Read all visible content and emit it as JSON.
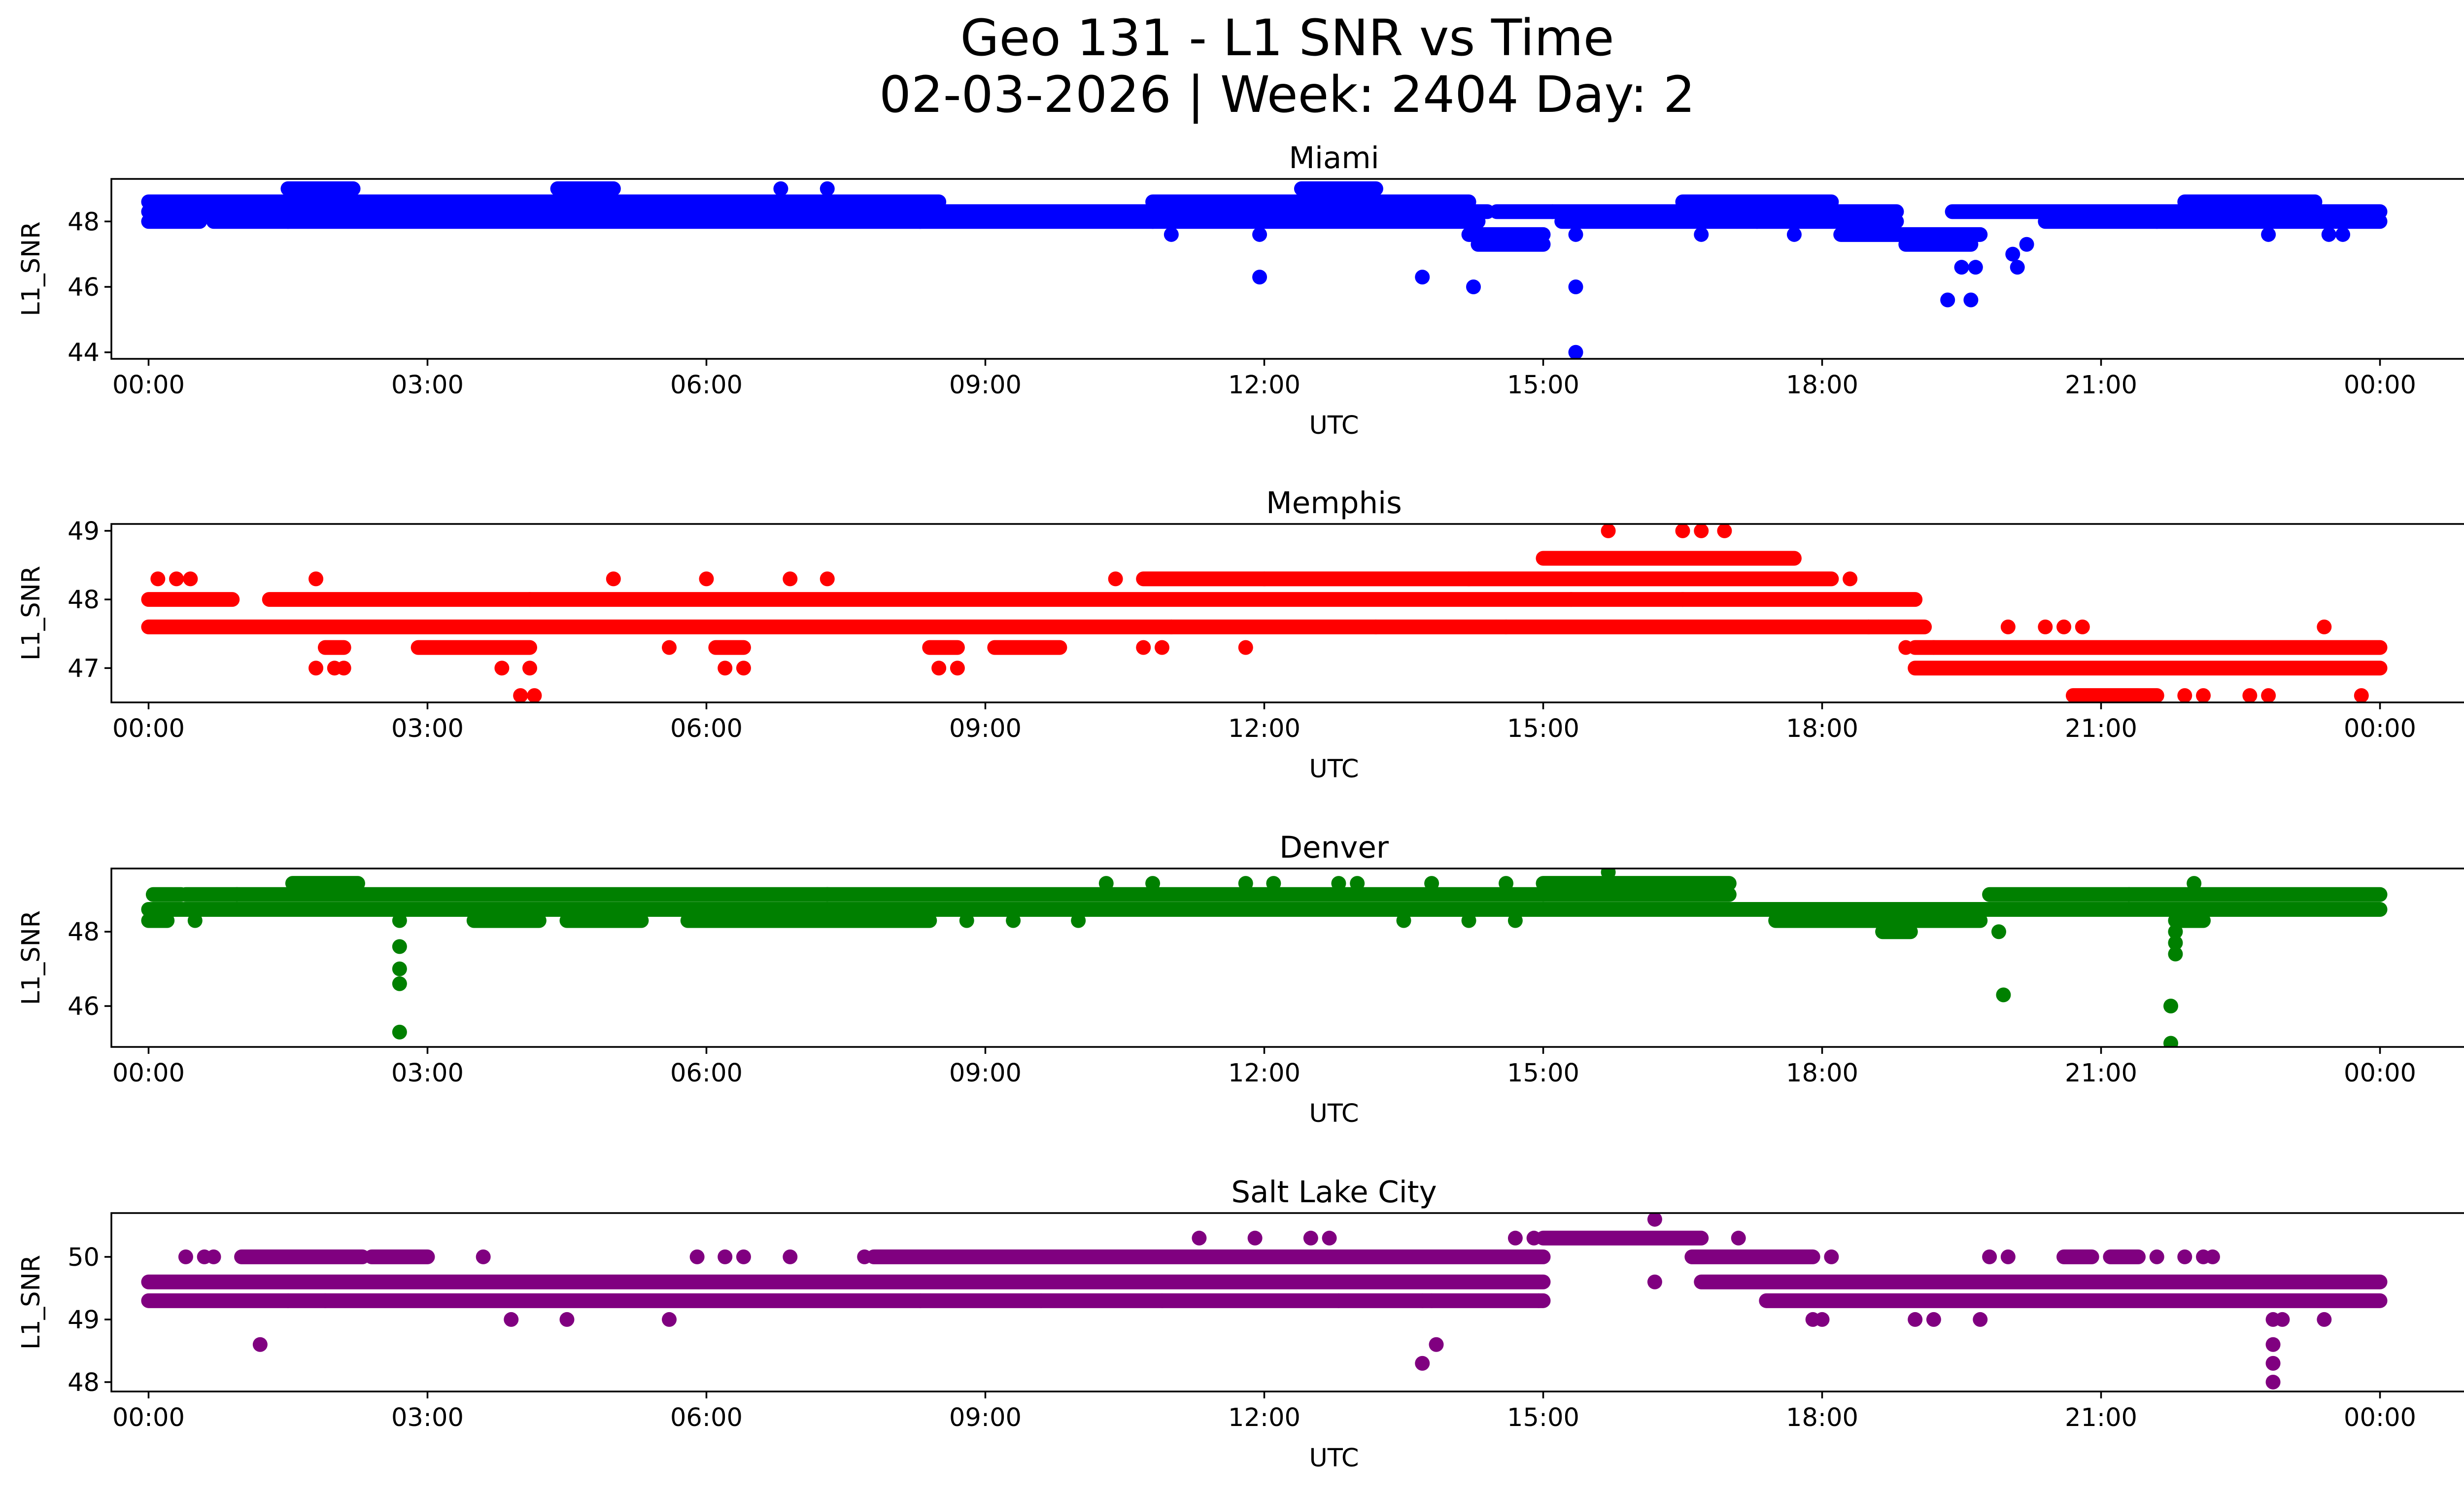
{
  "figure": {
    "title_line1": "Geo 131 - L1 SNR vs Time",
    "title_line2": "02-03-2026 | Week: 2404 Day: 2"
  },
  "chart_data": [
    {
      "type": "scatter",
      "title": "Miami",
      "xlabel": "UTC",
      "ylabel": "L1_SNR",
      "color": "#0000ff",
      "x_unit": "hours UTC",
      "xlim": [
        -0.4,
        25.9
      ],
      "xticks": [
        0,
        3,
        6,
        9,
        12,
        15,
        18,
        21,
        24
      ],
      "xtick_labels": [
        "00:00",
        "03:00",
        "06:00",
        "09:00",
        "12:00",
        "15:00",
        "18:00",
        "21:00",
        "00:00"
      ],
      "ylim": [
        43.8,
        49.3
      ],
      "yticks": [
        44,
        46,
        48
      ],
      "ytick_labels": [
        "44",
        "46",
        "48"
      ],
      "levels": [
        {
          "y": 48.0,
          "segments": [
            [
              0,
              0.55
            ],
            [
              0.7,
              8.3
            ],
            [
              8.3,
              10.8
            ],
            [
              10.8,
              14.3
            ],
            [
              15.2,
              17.3
            ],
            [
              17.3,
              18.8
            ],
            [
              20.4,
              21.6
            ],
            [
              21.6,
              24.0
            ]
          ]
        },
        {
          "y": 48.3,
          "segments": [
            [
              0,
              14.4
            ],
            [
              14.5,
              15.1
            ],
            [
              15.1,
              18.8
            ],
            [
              19.4,
              24.0
            ]
          ]
        },
        {
          "y": 48.6,
          "segments": [
            [
              0,
              8.5
            ],
            [
              10.8,
              14.2
            ],
            [
              16.5,
              18.1
            ],
            [
              21.9,
              23.3
            ]
          ]
        },
        {
          "y": 47.6,
          "segments": [
            [
              14.2,
              15.0
            ],
            [
              18.2,
              19.7
            ]
          ]
        },
        {
          "y": 47.3,
          "segments": [
            [
              14.3,
              15.0
            ],
            [
              18.9,
              19.6
            ]
          ]
        },
        {
          "y": 49.0,
          "segments": [
            [
              1.5,
              2.2
            ],
            [
              4.4,
              5.0
            ],
            [
              12.4,
              13.2
            ]
          ]
        }
      ],
      "points": [
        {
          "x": 1.5,
          "y": 48.0
        },
        {
          "x": 6.8,
          "y": 49.0
        },
        {
          "x": 7.3,
          "y": 49.0
        },
        {
          "x": 11.0,
          "y": 47.6
        },
        {
          "x": 11.95,
          "y": 47.6
        },
        {
          "x": 11.95,
          "y": 46.3
        },
        {
          "x": 13.7,
          "y": 46.3
        },
        {
          "x": 14.25,
          "y": 46.0
        },
        {
          "x": 15.35,
          "y": 46.0
        },
        {
          "x": 15.35,
          "y": 44.0
        },
        {
          "x": 15.35,
          "y": 47.6
        },
        {
          "x": 16.7,
          "y": 47.6
        },
        {
          "x": 17.7,
          "y": 47.6
        },
        {
          "x": 19.35,
          "y": 45.6
        },
        {
          "x": 19.6,
          "y": 45.6
        },
        {
          "x": 19.5,
          "y": 46.6
        },
        {
          "x": 19.65,
          "y": 46.6
        },
        {
          "x": 20.1,
          "y": 46.6
        },
        {
          "x": 20.05,
          "y": 47.0
        },
        {
          "x": 20.2,
          "y": 47.3
        },
        {
          "x": 22.8,
          "y": 47.6
        },
        {
          "x": 23.6,
          "y": 47.6
        },
        {
          "x": 23.45,
          "y": 47.6
        }
      ]
    },
    {
      "type": "scatter",
      "title": "Memphis",
      "xlabel": "UTC",
      "ylabel": "L1_SNR",
      "color": "#ff0000",
      "x_unit": "hours UTC",
      "xlim": [
        -0.4,
        25.9
      ],
      "xticks": [
        0,
        3,
        6,
        9,
        12,
        15,
        18,
        21,
        24
      ],
      "xtick_labels": [
        "00:00",
        "03:00",
        "06:00",
        "09:00",
        "12:00",
        "15:00",
        "18:00",
        "21:00",
        "00:00"
      ],
      "ylim": [
        46.5,
        49.1
      ],
      "yticks": [
        47,
        48,
        49
      ],
      "ytick_labels": [
        "47",
        "48",
        "49"
      ],
      "levels": [
        {
          "y": 47.6,
          "segments": [
            [
              0,
              19.1
            ]
          ]
        },
        {
          "y": 48.0,
          "segments": [
            [
              0,
              0.9
            ],
            [
              1.3,
              4.1
            ],
            [
              4.1,
              19.0
            ]
          ]
        },
        {
          "y": 48.3,
          "segments": [
            [
              10.7,
              12.0
            ],
            [
              12.0,
              18.1
            ]
          ]
        },
        {
          "y": 48.6,
          "segments": [
            [
              15.0,
              17.7
            ]
          ]
        },
        {
          "y": 47.3,
          "segments": [
            [
              1.9,
              2.1
            ],
            [
              2.9,
              4.1
            ],
            [
              6.1,
              6.4
            ],
            [
              8.4,
              8.7
            ],
            [
              9.1,
              9.8
            ],
            [
              19.0,
              24.0
            ]
          ]
        },
        {
          "y": 47.0,
          "segments": [
            [
              19.0,
              24.0
            ]
          ]
        },
        {
          "y": 46.6,
          "segments": [
            [
              20.7,
              21.6
            ]
          ]
        }
      ],
      "points": [
        {
          "x": 0.1,
          "y": 48.3
        },
        {
          "x": 0.3,
          "y": 48.3
        },
        {
          "x": 0.45,
          "y": 48.3
        },
        {
          "x": 1.8,
          "y": 48.3
        },
        {
          "x": 1.8,
          "y": 47.0
        },
        {
          "x": 2.0,
          "y": 47.0
        },
        {
          "x": 2.1,
          "y": 47.0
        },
        {
          "x": 3.8,
          "y": 47.0
        },
        {
          "x": 4.1,
          "y": 47.0
        },
        {
          "x": 4.0,
          "y": 46.6
        },
        {
          "x": 4.15,
          "y": 46.6
        },
        {
          "x": 5.0,
          "y": 48.3
        },
        {
          "x": 5.6,
          "y": 47.3
        },
        {
          "x": 6.0,
          "y": 48.3
        },
        {
          "x": 6.2,
          "y": 47.0
        },
        {
          "x": 6.4,
          "y": 47.0
        },
        {
          "x": 6.9,
          "y": 48.3
        },
        {
          "x": 7.3,
          "y": 48.3
        },
        {
          "x": 8.5,
          "y": 47.0
        },
        {
          "x": 8.7,
          "y": 47.0
        },
        {
          "x": 10.4,
          "y": 48.3
        },
        {
          "x": 10.7,
          "y": 47.3
        },
        {
          "x": 10.9,
          "y": 47.3
        },
        {
          "x": 11.0,
          "y": 47.6
        },
        {
          "x": 11.8,
          "y": 47.3
        },
        {
          "x": 13.2,
          "y": 47.6
        },
        {
          "x": 14.2,
          "y": 48.3
        },
        {
          "x": 14.6,
          "y": 47.6
        },
        {
          "x": 15.3,
          "y": 48.0
        },
        {
          "x": 15.7,
          "y": 49.0
        },
        {
          "x": 16.5,
          "y": 49.0
        },
        {
          "x": 16.7,
          "y": 49.0
        },
        {
          "x": 16.95,
          "y": 49.0
        },
        {
          "x": 16.5,
          "y": 48.0
        },
        {
          "x": 18.3,
          "y": 48.3
        },
        {
          "x": 18.5,
          "y": 47.6
        },
        {
          "x": 18.9,
          "y": 47.3
        },
        {
          "x": 19.2,
          "y": 47.3
        },
        {
          "x": 20.0,
          "y": 47.6
        },
        {
          "x": 20.4,
          "y": 47.6
        },
        {
          "x": 20.6,
          "y": 47.6
        },
        {
          "x": 20.8,
          "y": 47.6
        },
        {
          "x": 21.9,
          "y": 46.6
        },
        {
          "x": 22.1,
          "y": 46.6
        },
        {
          "x": 22.6,
          "y": 46.6
        },
        {
          "x": 22.8,
          "y": 46.6
        },
        {
          "x": 23.4,
          "y": 47.6
        },
        {
          "x": 23.8,
          "y": 46.6
        }
      ]
    },
    {
      "type": "scatter",
      "title": "Denver",
      "xlabel": "UTC",
      "ylabel": "L1_SNR",
      "color": "#008000",
      "x_unit": "hours UTC",
      "xlim": [
        -0.4,
        25.9
      ],
      "xticks": [
        0,
        3,
        6,
        9,
        12,
        15,
        18,
        21,
        24
      ],
      "xtick_labels": [
        "00:00",
        "03:00",
        "06:00",
        "09:00",
        "12:00",
        "15:00",
        "18:00",
        "21:00",
        "00:00"
      ],
      "ylim": [
        44.9,
        49.7
      ],
      "yticks": [
        46,
        48
      ],
      "ytick_labels": [
        "46",
        "48"
      ],
      "levels": [
        {
          "y": 48.6,
          "segments": [
            [
              0,
              24.0
            ]
          ]
        },
        {
          "y": 49.0,
          "segments": [
            [
              0.05,
              0.35
            ],
            [
              0.4,
              0.95
            ],
            [
              0.95,
              15.0
            ],
            [
              15.0,
              17.0
            ],
            [
              19.8,
              21.3
            ],
            [
              21.3,
              24.0
            ]
          ]
        },
        {
          "y": 48.3,
          "segments": [
            [
              0,
              0.2
            ],
            [
              3.5,
              4.2
            ],
            [
              4.5,
              5.3
            ],
            [
              5.8,
              8.4
            ],
            [
              17.5,
              19.7
            ],
            [
              21.8,
              22.1
            ]
          ]
        },
        {
          "y": 49.3,
          "segments": [
            [
              1.55,
              2.25
            ],
            [
              15.0,
              17.0
            ]
          ]
        },
        {
          "y": 48.0,
          "segments": [
            [
              18.65,
              18.95
            ]
          ]
        }
      ],
      "points": [
        {
          "x": 0.5,
          "y": 48.3
        },
        {
          "x": 2.7,
          "y": 48.3
        },
        {
          "x": 2.7,
          "y": 47.6
        },
        {
          "x": 2.7,
          "y": 47.0
        },
        {
          "x": 2.7,
          "y": 46.6
        },
        {
          "x": 2.7,
          "y": 45.3
        },
        {
          "x": 7.3,
          "y": 49.0
        },
        {
          "x": 8.8,
          "y": 48.3
        },
        {
          "x": 9.3,
          "y": 48.3
        },
        {
          "x": 10.0,
          "y": 48.3
        },
        {
          "x": 10.3,
          "y": 49.3
        },
        {
          "x": 10.8,
          "y": 49.3
        },
        {
          "x": 11.8,
          "y": 49.3
        },
        {
          "x": 12.1,
          "y": 49.3
        },
        {
          "x": 12.8,
          "y": 49.3
        },
        {
          "x": 13.0,
          "y": 49.3
        },
        {
          "x": 13.8,
          "y": 49.3
        },
        {
          "x": 13.5,
          "y": 48.3
        },
        {
          "x": 14.2,
          "y": 48.3
        },
        {
          "x": 14.7,
          "y": 48.3
        },
        {
          "x": 14.6,
          "y": 49.3
        },
        {
          "x": 15.7,
          "y": 49.6
        },
        {
          "x": 19.9,
          "y": 48.0
        },
        {
          "x": 19.95,
          "y": 46.3
        },
        {
          "x": 21.8,
          "y": 48.0
        },
        {
          "x": 21.8,
          "y": 47.7
        },
        {
          "x": 21.8,
          "y": 47.4
        },
        {
          "x": 21.75,
          "y": 46.0
        },
        {
          "x": 21.75,
          "y": 45.0
        },
        {
          "x": 22.0,
          "y": 49.3
        }
      ]
    },
    {
      "type": "scatter",
      "title": "Salt Lake City",
      "xlabel": "UTC",
      "ylabel": "L1_SNR",
      "color": "#800080",
      "x_unit": "hours UTC",
      "xlim": [
        -0.4,
        25.9
      ],
      "xticks": [
        0,
        3,
        6,
        9,
        12,
        15,
        18,
        21,
        24
      ],
      "xtick_labels": [
        "00:00",
        "03:00",
        "06:00",
        "09:00",
        "12:00",
        "15:00",
        "18:00",
        "21:00",
        "00:00"
      ],
      "ylim": [
        47.85,
        50.7
      ],
      "yticks": [
        48,
        49,
        50
      ],
      "ytick_labels": [
        "48",
        "49",
        "50"
      ],
      "levels": [
        {
          "y": 49.6,
          "segments": [
            [
              0,
              15.0
            ],
            [
              16.7,
              24.0
            ]
          ]
        },
        {
          "y": 49.3,
          "segments": [
            [
              0,
              8.3
            ],
            [
              8.3,
              15.0
            ],
            [
              17.4,
              24.0
            ]
          ]
        },
        {
          "y": 50.0,
          "segments": [
            [
              1.0,
              2.3
            ],
            [
              7.8,
              15.0
            ],
            [
              16.6,
              17.9
            ],
            [
              20.6,
              20.9
            ],
            [
              21.1,
              21.4
            ]
          ]
        },
        {
          "y": 50.3,
          "segments": [
            [
              15.0,
              16.7
            ]
          ]
        },
        {
          "y": 50.0,
          "segments": [
            [
              2.4,
              3.0
            ]
          ]
        }
      ],
      "points": [
        {
          "x": 0.4,
          "y": 50.0
        },
        {
          "x": 0.6,
          "y": 50.0
        },
        {
          "x": 0.7,
          "y": 50.0
        },
        {
          "x": 1.2,
          "y": 48.6
        },
        {
          "x": 1.5,
          "y": 49.3
        },
        {
          "x": 1.9,
          "y": 49.3
        },
        {
          "x": 3.6,
          "y": 50.0
        },
        {
          "x": 3.9,
          "y": 49.0
        },
        {
          "x": 4.5,
          "y": 49.0
        },
        {
          "x": 5.6,
          "y": 49.0
        },
        {
          "x": 5.9,
          "y": 50.0
        },
        {
          "x": 6.2,
          "y": 50.0
        },
        {
          "x": 6.4,
          "y": 50.0
        },
        {
          "x": 6.9,
          "y": 50.0
        },
        {
          "x": 7.7,
          "y": 50.0
        },
        {
          "x": 9.6,
          "y": 49.3
        },
        {
          "x": 10.9,
          "y": 49.3
        },
        {
          "x": 11.3,
          "y": 50.3
        },
        {
          "x": 11.9,
          "y": 50.3
        },
        {
          "x": 12.5,
          "y": 50.3
        },
        {
          "x": 12.7,
          "y": 50.3
        },
        {
          "x": 12.8,
          "y": 49.3
        },
        {
          "x": 13.7,
          "y": 49.3
        },
        {
          "x": 13.7,
          "y": 48.3
        },
        {
          "x": 13.85,
          "y": 48.6
        },
        {
          "x": 13.8,
          "y": 49.3
        },
        {
          "x": 14.7,
          "y": 50.3
        },
        {
          "x": 14.9,
          "y": 50.3
        },
        {
          "x": 14.95,
          "y": 49.3
        },
        {
          "x": 16.2,
          "y": 50.6
        },
        {
          "x": 16.2,
          "y": 49.6
        },
        {
          "x": 17.1,
          "y": 50.3
        },
        {
          "x": 17.9,
          "y": 49.0
        },
        {
          "x": 18.0,
          "y": 49.0
        },
        {
          "x": 18.1,
          "y": 50.0
        },
        {
          "x": 19.0,
          "y": 49.0
        },
        {
          "x": 19.2,
          "y": 49.0
        },
        {
          "x": 19.7,
          "y": 49.0
        },
        {
          "x": 19.8,
          "y": 50.0
        },
        {
          "x": 20.0,
          "y": 50.0
        },
        {
          "x": 21.6,
          "y": 50.0
        },
        {
          "x": 21.9,
          "y": 50.0
        },
        {
          "x": 22.1,
          "y": 50.0
        },
        {
          "x": 22.2,
          "y": 50.0
        },
        {
          "x": 22.85,
          "y": 49.0
        },
        {
          "x": 22.95,
          "y": 49.0
        },
        {
          "x": 22.85,
          "y": 48.6
        },
        {
          "x": 22.85,
          "y": 48.3
        },
        {
          "x": 22.85,
          "y": 48.0
        },
        {
          "x": 23.4,
          "y": 49.0
        }
      ]
    }
  ]
}
